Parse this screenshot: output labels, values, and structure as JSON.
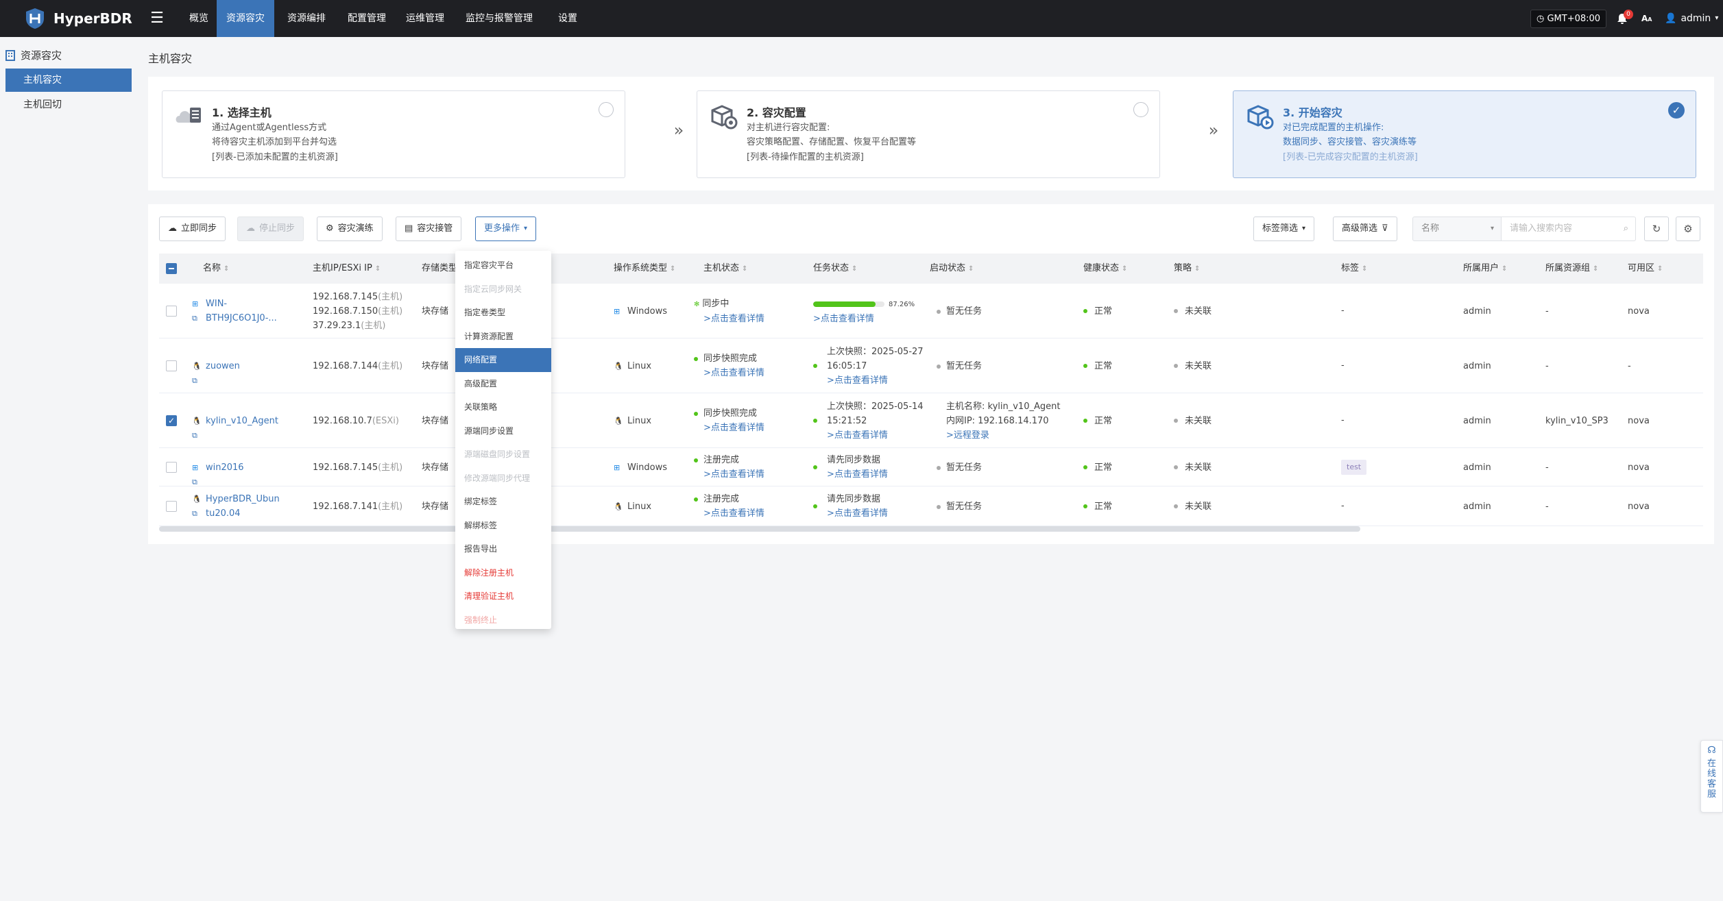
{
  "app": {
    "name": "HyperBDR"
  },
  "nav": [
    "概览",
    "资源容灾",
    "资源编排",
    "配置管理",
    "运维管理",
    "监控与报警管理",
    "设置"
  ],
  "topbar": {
    "timezone": "GMT+08:00",
    "notification_count": "0",
    "font_label": "A",
    "user": "admin"
  },
  "sidebar": {
    "section": "资源容灾",
    "items": [
      "主机容灾",
      "主机回切"
    ]
  },
  "page_title": "主机容灾",
  "steps": [
    {
      "title": "1. 选择主机",
      "lines": [
        "通过Agent或Agentless方式",
        "将待容灾主机添加到平台并勾选",
        "[列表-已添加未配置的主机资源]"
      ]
    },
    {
      "title": "2. 容灾配置",
      "lines": [
        "对主机进行容灾配置:",
        "容灾策略配置、存储配置、恢复平台配置等",
        "[列表-待操作配置的主机资源]"
      ]
    },
    {
      "title": "3. 开始容灾",
      "lines": [
        "对已完成配置的主机操作:",
        "数据同步、容灾接管、容灾演练等",
        "[列表-已完成容灾配置的主机资源]"
      ]
    }
  ],
  "toolbar": {
    "sync_now": "立即同步",
    "stop_sync": "停止同步",
    "dr_drill": "容灾演练",
    "dr_takeover": "容灾接管",
    "more_ops": "更多操作",
    "tag_filter": "标签筛选",
    "advanced_filter": "高级筛选",
    "search_field": "名称",
    "search_placeholder": "请输入搜索内容"
  },
  "columns": [
    "名称",
    "主机IP/ESXi IP",
    "存储类型",
    "操作系统类型",
    "主机状态",
    "任务状态",
    "启动状态",
    "健康状态",
    "策略",
    "标签",
    "所属用户",
    "所属资源组",
    "可用区"
  ],
  "rows": [
    {
      "checked": false,
      "os": "Windows",
      "name": [
        "WIN-",
        "BTH9JC6O1J0-..."
      ],
      "ips": [
        [
          "192.168.7.145",
          "(主机)"
        ],
        [
          "192.168.7.150",
          "(主机)"
        ],
        [
          "37.29.23.1",
          "(主机)"
        ]
      ],
      "storage": "块存储",
      "os_label": "Windows",
      "host_status": "同步中",
      "host_link": ">点击查看详情",
      "task": {
        "progress": 87.26,
        "progress_label": "87.26%",
        "lines": [],
        "link": ">点击查看详情"
      },
      "boot": [
        "暂无任务"
      ],
      "boot_link": "",
      "health": "正常",
      "policy": "未关联",
      "tag": "-",
      "user": "admin",
      "group": "-",
      "zone": "nova"
    },
    {
      "checked": false,
      "os": "Linux",
      "name": [
        "zuowen"
      ],
      "ips": [
        [
          "192.168.7.144",
          "(主机)"
        ]
      ],
      "storage": "块存储",
      "os_label": "Linux",
      "host_status": "同步快照完成",
      "host_link": ">点击查看详情",
      "task": {
        "progress": null,
        "lines": [
          "上次快照：2025-05-27",
          "16:05:17"
        ],
        "link": ">点击查看详情"
      },
      "boot": [
        "暂无任务"
      ],
      "boot_link": "",
      "health": "正常",
      "policy": "未关联",
      "tag": "-",
      "user": "admin",
      "group": "-",
      "zone": "-"
    },
    {
      "checked": true,
      "os": "Linux",
      "name": [
        "kylin_v10_Agent"
      ],
      "ips": [
        [
          "192.168.10.7",
          "(ESXi)"
        ]
      ],
      "storage": "块存储",
      "os_label": "Linux",
      "host_status": "同步快照完成",
      "host_link": ">点击查看详情",
      "task": {
        "progress": null,
        "lines": [
          "上次快照：2025-05-14",
          "15:21:52"
        ],
        "link": ">点击查看详情"
      },
      "boot": [
        "主机名称: kylin_v10_Agent",
        "内网IP: 192.168.14.170"
      ],
      "boot_link": ">远程登录",
      "health": "正常",
      "policy": "未关联",
      "tag": "-",
      "user": "admin",
      "group": "kylin_v10_SP3",
      "zone": "nova"
    },
    {
      "checked": false,
      "os": "Windows",
      "name": [
        "win2016"
      ],
      "ips": [
        [
          "192.168.7.145",
          "(主机)"
        ]
      ],
      "storage": "块存储",
      "os_label": "Windows",
      "host_status": "注册完成",
      "host_link": ">点击查看详情",
      "task": {
        "progress": null,
        "lines": [
          "请先同步数据"
        ],
        "link": ">点击查看详情"
      },
      "boot": [
        "暂无任务"
      ],
      "boot_link": "",
      "health": "正常",
      "policy": "未关联",
      "tag": "test",
      "user": "admin",
      "group": "-",
      "zone": "nova"
    },
    {
      "checked": false,
      "os": "Linux",
      "name": [
        "HyperBDR_Ubun",
        "tu20.04"
      ],
      "ips": [
        [
          "192.168.7.141",
          "(主机)"
        ]
      ],
      "storage": "块存储",
      "os_label": "Linux",
      "host_status": "注册完成",
      "host_link": ">点击查看详情",
      "task": {
        "progress": null,
        "lines": [
          "请先同步数据"
        ],
        "link": ">点击查看详情"
      },
      "boot": [
        "暂无任务"
      ],
      "boot_link": "",
      "health": "正常",
      "policy": "未关联",
      "tag": "-",
      "user": "admin",
      "group": "-",
      "zone": "nova"
    }
  ],
  "more_menu": [
    {
      "label": "指定容灾平台",
      "state": "normal"
    },
    {
      "label": "指定云同步网关",
      "state": "disabled"
    },
    {
      "label": "指定卷类型",
      "state": "normal"
    },
    {
      "label": "计算资源配置",
      "state": "normal"
    },
    {
      "label": "网络配置",
      "state": "active"
    },
    {
      "label": "高级配置",
      "state": "normal"
    },
    {
      "label": "关联策略",
      "state": "normal"
    },
    {
      "label": "源端同步设置",
      "state": "normal"
    },
    {
      "label": "源端磁盘同步设置",
      "state": "disabled"
    },
    {
      "label": "修改源端同步代理",
      "state": "disabled"
    },
    {
      "label": "绑定标签",
      "state": "normal"
    },
    {
      "label": "解绑标签",
      "state": "normal"
    },
    {
      "label": "报告导出",
      "state": "normal"
    },
    {
      "label": "解除注册主机",
      "state": "danger"
    },
    {
      "label": "清理验证主机",
      "state": "danger"
    },
    {
      "label": "强制终止",
      "state": "danger-disabled"
    }
  ],
  "service": {
    "label": "在线客服"
  },
  "colors": {
    "accent": "#3b74b7",
    "topbar": "#1f2024",
    "success": "#52c41a",
    "danger": "#e53935"
  }
}
